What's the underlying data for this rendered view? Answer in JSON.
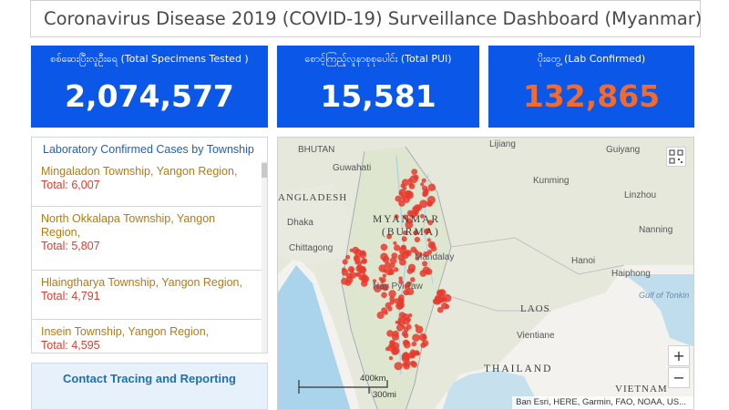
{
  "header": {
    "title": "Coronavirus Disease 2019 (COVID-19) Surveillance Dashboard (Myanmar)"
  },
  "stats": [
    {
      "label": "စစ်ဆေးပြီးလူဦးရေ (Total Specimens Tested )",
      "value": "2,074,577",
      "color": "#ffffff"
    },
    {
      "label": "စောင့်ကြည့်လူနာစုစုပေါင်း (Total PUI)",
      "value": "15,581",
      "color": "#ffffff"
    },
    {
      "label": "ပိုးတွေ့ (Lab Confirmed)",
      "value": "132,865",
      "color": "#f26a2c"
    }
  ],
  "township_list": {
    "title": "Laboratory Confirmed Cases by Township",
    "items": [
      {
        "place": "Mingaladon Township, Yangon Region,",
        "total": "Total: 6,007"
      },
      {
        "place": "North Okkalapa Township, Yangon Region,",
        "total": "Total: 5,807"
      },
      {
        "place": "Hlaingtharya Township, Yangon Region,",
        "total": "Total: 4,791"
      },
      {
        "place": "Insein Township, Yangon Region,",
        "total": "Total: 4,595"
      }
    ]
  },
  "contact": {
    "label": "Contact Tracing and Reporting"
  },
  "map": {
    "labels": {
      "bhutan": "BHUTAN",
      "guwahati": "Guwahati",
      "bangladesh": "ANGLADESH",
      "dhaka": "Dhaka",
      "chittagong": "Chittagong",
      "myanmar": "MYANMAR",
      "burma": "(BURMA)",
      "mandalay": "Mandalay",
      "naypyitaw": "Nay Pyi Taw",
      "lijiang": "Lijiang",
      "guiyang": "Guiyang",
      "kunming": "Kunming",
      "linzhou": "Linzhou",
      "nanning": "Nanning",
      "hanoi": "Hanoi",
      "haiphong": "Haiphong",
      "gulf": "Gulf of Tonkin",
      "laos": "LAOS",
      "vientiane": "Vientiane",
      "thailand": "THAILAND",
      "vietnam": "VIETNAM"
    },
    "scale_km": "400km",
    "scale_mi": "300mi",
    "attribution": "Esri, HERE, Garmin, FAO, NOAA, US...",
    "attribution_prefix": "Ban",
    "zoom_in": "+",
    "zoom_out": "−",
    "dot_color": "#e8392e"
  }
}
